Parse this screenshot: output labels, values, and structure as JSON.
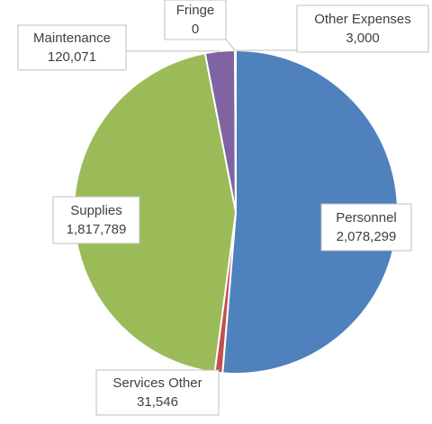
{
  "chart_data": {
    "type": "pie",
    "categories": [
      "Personnel",
      "Services Other",
      "Supplies",
      "Maintenance",
      "Fringe",
      "Other Expenses"
    ],
    "values": [
      2078299,
      31546,
      1817789,
      120071,
      0,
      3000
    ],
    "value_labels": [
      "2,078,299",
      "31,546",
      "1,817,789",
      "120,071",
      "0",
      "3,000"
    ],
    "colors": [
      "#4f81bd",
      "#c0504d",
      "#9bbb59",
      "#8064a2",
      "#4bacc6",
      "#f79646"
    ]
  }
}
